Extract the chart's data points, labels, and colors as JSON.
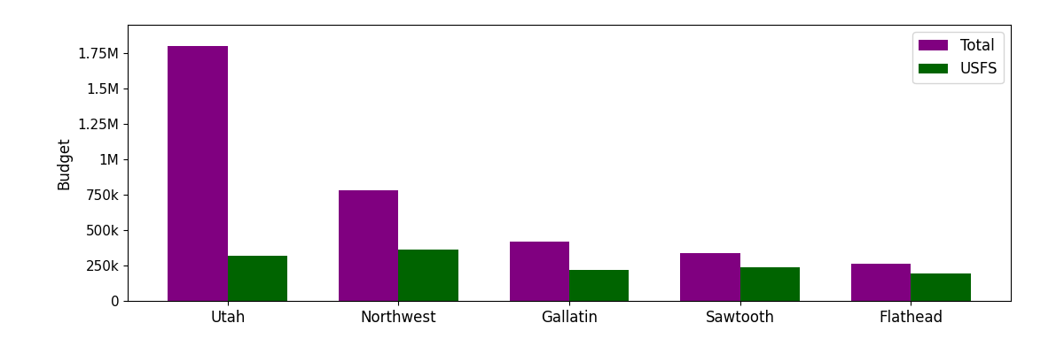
{
  "categories": [
    "Utah",
    "Northwest",
    "Gallatin",
    "Sawtooth",
    "Flathead"
  ],
  "total_values": [
    1800000,
    780000,
    420000,
    335000,
    260000
  ],
  "usfs_values": [
    320000,
    360000,
    220000,
    235000,
    195000
  ],
  "total_color": "#800080",
  "usfs_color": "#006400",
  "ylabel": "Budget",
  "legend_labels": [
    "Total",
    "USFS"
  ],
  "ylim": [
    0,
    1950000
  ],
  "bar_width": 0.35,
  "background_color": "#ffffff",
  "yticks": [
    0,
    250000,
    500000,
    750000,
    1000000,
    1250000,
    1500000,
    1750000
  ],
  "ytick_labels": [
    "0",
    "250k",
    "500k",
    "750k",
    "1M",
    "1.25M",
    "1.5M",
    "1.75M"
  ],
  "figsize": [
    12.0,
    4.0
  ],
  "dpi": 100
}
